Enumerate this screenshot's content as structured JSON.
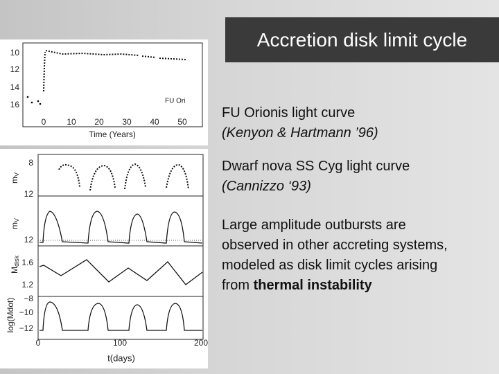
{
  "header": {
    "title": "Accretion disk limit cycle"
  },
  "figure_top": {
    "y_ticks": [
      "10",
      "12",
      "14",
      "16"
    ],
    "x_ticks": [
      "0",
      "10",
      "20",
      "30",
      "40",
      "50"
    ],
    "x_label": "Time (Years)",
    "annotation": "FU Ori"
  },
  "figure_bottom": {
    "panel_1": {
      "y_label": "m",
      "y_label_sub": "V",
      "y_ticks": [
        "8",
        "12"
      ]
    },
    "panel_2": {
      "y_label": "m",
      "y_label_sub": "V",
      "y_ticks": [
        "12"
      ]
    },
    "panel_3": {
      "y_label": "M",
      "y_label_sub": "disk",
      "y_ticks": [
        "1.6",
        "1.2"
      ]
    },
    "panel_4": {
      "y_label": "log(Mdot)",
      "y_ticks": [
        "−8",
        "−10",
        "−12"
      ]
    },
    "x_ticks": [
      "0",
      "100",
      "200"
    ],
    "x_label": "t(days)"
  },
  "captions": [
    {
      "text": "FU Orionis light curve",
      "reference": "(Kenyon & Hartmann ’96)"
    },
    {
      "text": "Dwarf nova SS Cyg light curve",
      "reference": "(Cannizzo ‘93)"
    }
  ],
  "paragraph": {
    "text": "Large amplitude outbursts are observed in other accreting systems, modeled as disk limit cycles arising from ",
    "emphasis": "thermal instability"
  }
}
